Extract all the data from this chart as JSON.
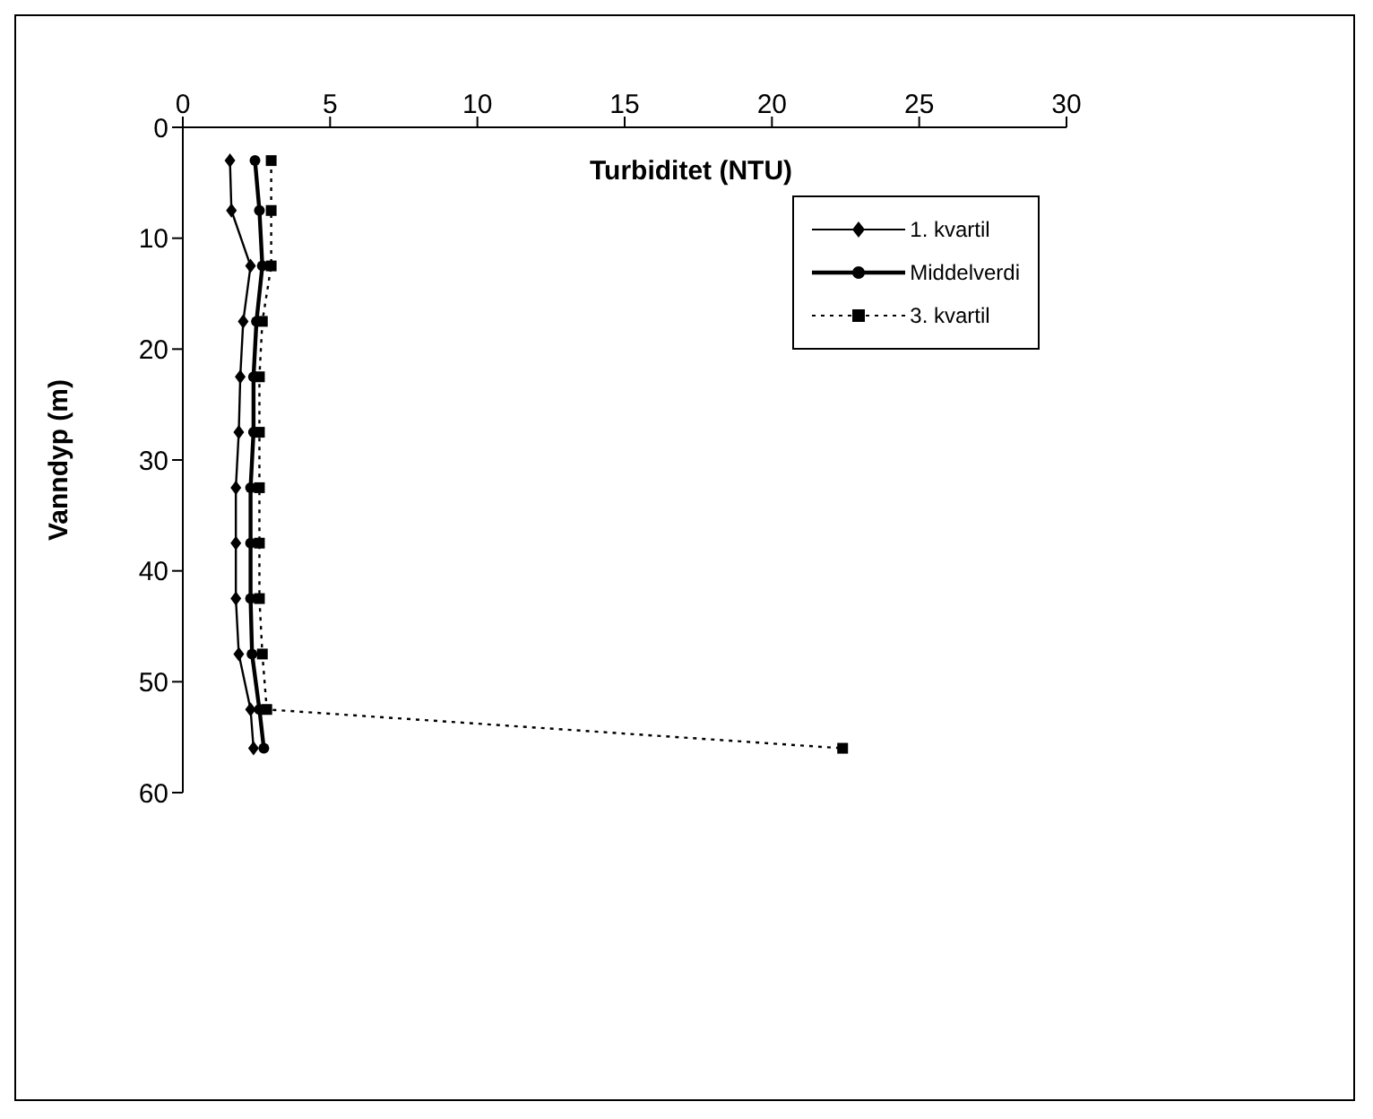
{
  "chart_data": {
    "type": "line",
    "title": "Turbiditet (NTU)",
    "ylabel": "Vanndyp (m)",
    "xlim": [
      0,
      30
    ],
    "xticks": [
      0,
      5,
      10,
      15,
      20,
      25,
      30
    ],
    "ylim": [
      60,
      0
    ],
    "yticks": [
      0,
      10,
      20,
      30,
      40,
      50,
      60
    ],
    "grid": false,
    "legend": "top right",
    "series": [
      {
        "name": "1. kvartil",
        "color": "#000000",
        "marker": "diamond",
        "line_style": "solid",
        "x": [
          1.6,
          1.65,
          2.3,
          2.05,
          1.95,
          1.9,
          1.8,
          1.8,
          1.8,
          1.9,
          2.3,
          2.4
        ],
        "values": [
          3,
          7.5,
          12.5,
          17.5,
          22.5,
          27.5,
          32.5,
          37.5,
          42.5,
          47.5,
          52.5,
          56
        ]
      },
      {
        "name": "Middelverdi",
        "color": "#000000",
        "marker": "circle",
        "line_style": "solid",
        "x": [
          2.45,
          2.6,
          2.7,
          2.5,
          2.4,
          2.4,
          2.3,
          2.3,
          2.3,
          2.35,
          2.6,
          2.75
        ],
        "values": [
          3,
          7.5,
          12.5,
          17.5,
          22.5,
          27.5,
          32.5,
          37.5,
          42.5,
          47.5,
          52.5,
          56
        ]
      },
      {
        "name": "3. kvartil",
        "color": "#000000",
        "marker": "square",
        "line_style": "dotted",
        "x": [
          3.0,
          3.0,
          3.0,
          2.7,
          2.6,
          2.6,
          2.6,
          2.6,
          2.6,
          2.7,
          2.85,
          22.4
        ],
        "values": [
          3,
          7.5,
          12.5,
          17.5,
          22.5,
          27.5,
          32.5,
          37.5,
          42.5,
          47.5,
          52.5,
          56
        ]
      }
    ]
  }
}
